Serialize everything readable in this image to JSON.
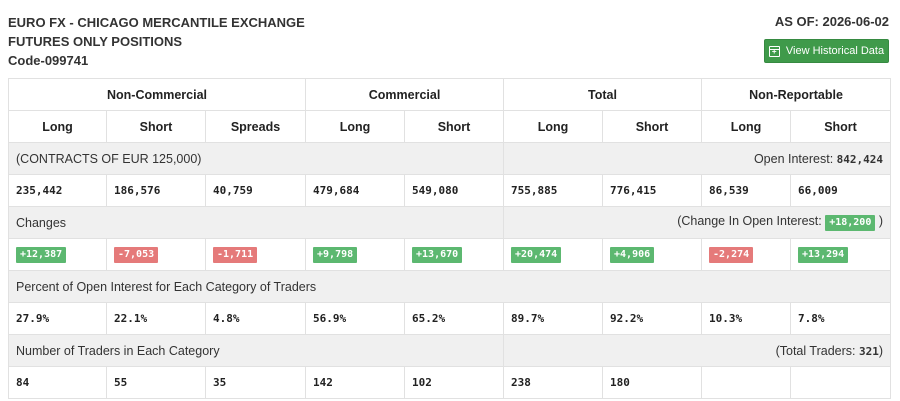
{
  "header": {
    "title_line1": "EURO FX - CHICAGO MERCANTILE EXCHANGE",
    "title_line2": "FUTURES ONLY POSITIONS",
    "code": "Code-099741",
    "as_of": "AS OF: 2026-06-02",
    "button_label": "View Historical Data"
  },
  "groups": [
    "Non-Commercial",
    "Commercial",
    "Total",
    "Non-Reportable"
  ],
  "columns": [
    "Long",
    "Short",
    "Spreads",
    "Long",
    "Short",
    "Long",
    "Short",
    "Long",
    "Short"
  ],
  "contracts": {
    "label": "(CONTRACTS OF EUR 125,000)",
    "oi_label": "Open Interest:",
    "oi_value": "842,424",
    "values": [
      "235,442",
      "186,576",
      "40,759",
      "479,684",
      "549,080",
      "755,885",
      "776,415",
      "86,539",
      "66,009"
    ]
  },
  "changes": {
    "label": "Changes",
    "oi_label": "(Change In Open Interest:",
    "oi_value": "+18,200",
    "oi_close": ")",
    "values": [
      "+12,387",
      "-7,053",
      "-1,711",
      "+9,798",
      "+13,670",
      "+20,474",
      "+4,906",
      "-2,274",
      "+13,294"
    ],
    "signs": [
      "pos",
      "neg",
      "neg",
      "pos",
      "pos",
      "pos",
      "pos",
      "neg",
      "pos"
    ]
  },
  "percent": {
    "label": "Percent of Open Interest for Each Category of Traders",
    "values": [
      "27.9%",
      "22.1%",
      "4.8%",
      "56.9%",
      "65.2%",
      "89.7%",
      "92.2%",
      "10.3%",
      "7.8%"
    ]
  },
  "traders": {
    "label": "Number of Traders in Each Category",
    "total_label": "(Total Traders:",
    "total_value": "321",
    "total_close": ")",
    "values": [
      "84",
      "55",
      "35",
      "142",
      "102",
      "238",
      "180",
      "",
      ""
    ]
  },
  "colors": {
    "button": "#3f9a4a",
    "positive": "#5cb870",
    "negative": "#e57a7a",
    "section_bg": "#f0f0f0"
  }
}
